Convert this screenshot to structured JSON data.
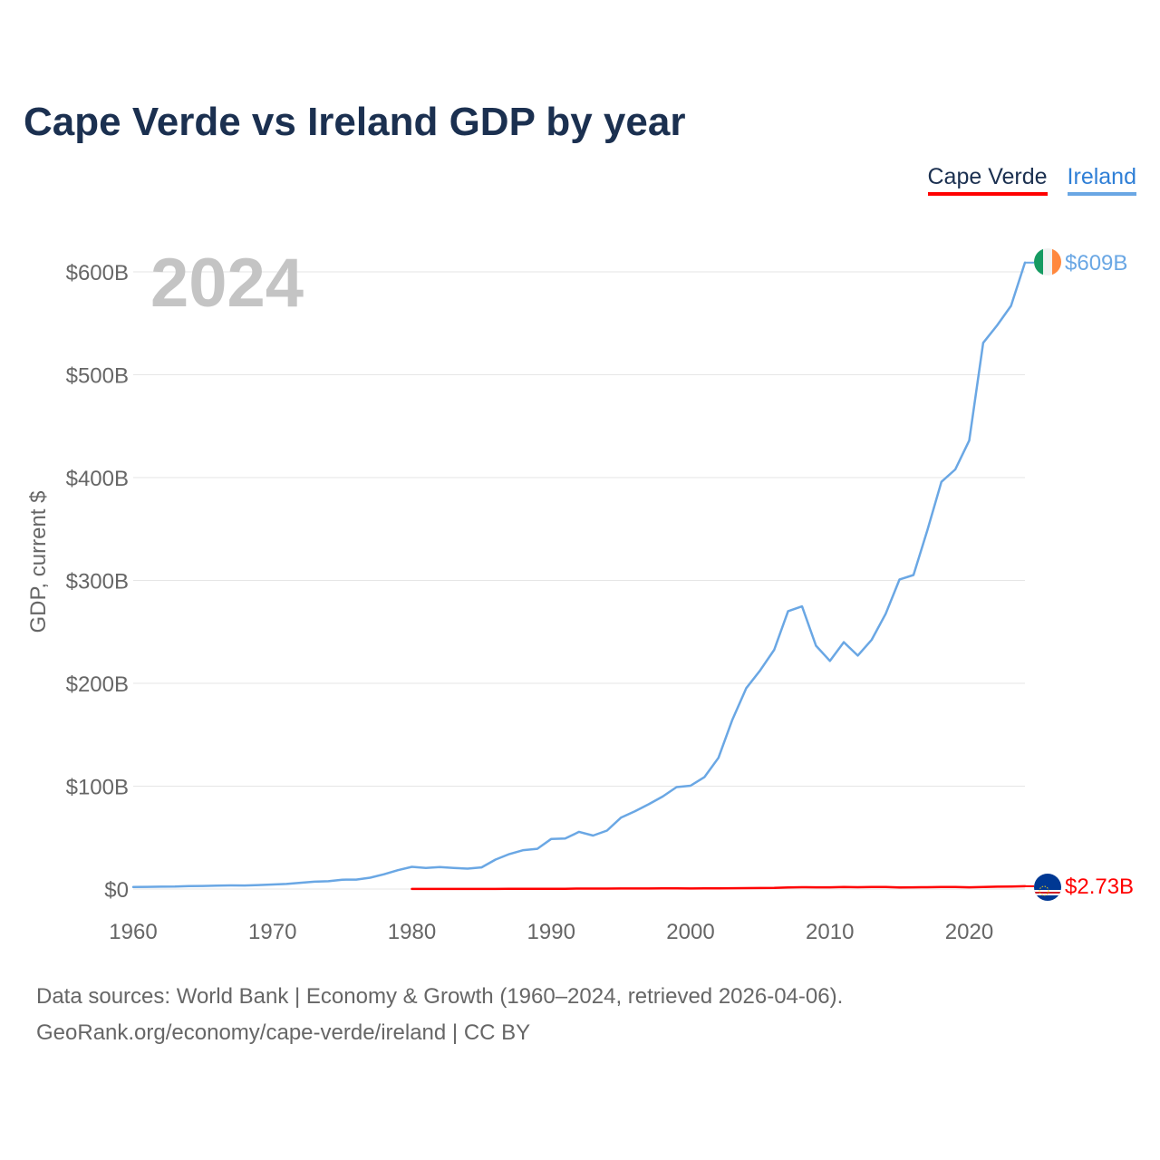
{
  "title": "Cape Verde vs Ireland GDP by year",
  "year_label": "2024",
  "legend": {
    "cape_verde": "Cape Verde",
    "ireland": "Ireland"
  },
  "source": {
    "line1": "Data sources: World Bank | Economy & Growth (1960–2024, retrieved 2026-04-06).",
    "line2": "GeoRank.org/economy/cape-verde/ireland | CC BY"
  },
  "colors": {
    "cape_verde": "#ff0000",
    "ireland": "#6aa7e4",
    "title": "#1b3050",
    "grid": "#e6e6e6",
    "axis_text": "#666666",
    "year_watermark": "#c4c4c4"
  },
  "chart_data": {
    "type": "line",
    "title": "Cape Verde vs Ireland GDP by year",
    "xlabel": "",
    "ylabel": "GDP, current $",
    "xlim": [
      1960,
      2024
    ],
    "ylim": [
      0,
      600
    ],
    "x_ticks": [
      1960,
      1970,
      1980,
      1990,
      2000,
      2010,
      2020
    ],
    "x_tick_labels": [
      "1960",
      "1970",
      "1980",
      "1990",
      "2000",
      "2010",
      "2020"
    ],
    "y_ticks": [
      0,
      100,
      200,
      300,
      400,
      500,
      600
    ],
    "y_tick_labels": [
      "$0",
      "$100B",
      "$200B",
      "$300B",
      "$400B",
      "$500B",
      "$600B"
    ],
    "unit": "billions USD",
    "series": [
      {
        "name": "Cape Verde",
        "color": "#ff0000",
        "end_label": "$2.73B",
        "x": [
          1980,
          1981,
          1982,
          1983,
          1984,
          1985,
          1986,
          1987,
          1988,
          1989,
          1990,
          1991,
          1992,
          1993,
          1994,
          1995,
          1996,
          1997,
          1998,
          1999,
          2000,
          2001,
          2002,
          2003,
          2004,
          2005,
          2006,
          2007,
          2008,
          2009,
          2010,
          2011,
          2012,
          2013,
          2014,
          2015,
          2016,
          2017,
          2018,
          2019,
          2020,
          2021,
          2022,
          2023,
          2024
        ],
        "values": [
          0.1,
          0.1,
          0.1,
          0.1,
          0.1,
          0.1,
          0.1,
          0.2,
          0.2,
          0.2,
          0.3,
          0.3,
          0.4,
          0.4,
          0.4,
          0.5,
          0.5,
          0.5,
          0.6,
          0.6,
          0.5,
          0.6,
          0.6,
          0.8,
          0.9,
          1.0,
          1.1,
          1.5,
          1.8,
          1.7,
          1.7,
          1.9,
          1.8,
          1.9,
          1.9,
          1.6,
          1.7,
          1.8,
          2.0,
          2.0,
          1.7,
          1.9,
          2.3,
          2.5,
          2.73
        ]
      },
      {
        "name": "Ireland",
        "color": "#6aa7e4",
        "end_label": "$609B",
        "x": [
          1960,
          1961,
          1962,
          1963,
          1964,
          1965,
          1966,
          1967,
          1968,
          1969,
          1970,
          1971,
          1972,
          1973,
          1974,
          1975,
          1976,
          1977,
          1978,
          1979,
          1980,
          1981,
          1982,
          1983,
          1984,
          1985,
          1986,
          1987,
          1988,
          1989,
          1990,
          1991,
          1992,
          1993,
          1994,
          1995,
          1996,
          1997,
          1998,
          1999,
          2000,
          2001,
          2002,
          2003,
          2004,
          2005,
          2006,
          2007,
          2008,
          2009,
          2010,
          2011,
          2012,
          2013,
          2014,
          2015,
          2016,
          2017,
          2018,
          2019,
          2020,
          2021,
          2022,
          2023,
          2024
        ],
        "values": [
          1.9,
          2.1,
          2.3,
          2.4,
          2.8,
          3.0,
          3.3,
          3.5,
          3.4,
          3.9,
          4.4,
          4.9,
          6.1,
          7.1,
          7.6,
          9.1,
          9.2,
          11.0,
          14.4,
          18.3,
          21.6,
          20.5,
          21.3,
          20.5,
          19.8,
          21.1,
          28.6,
          34.0,
          37.8,
          39.1,
          48.7,
          49.2,
          55.6,
          52.0,
          56.8,
          69.3,
          75.6,
          82.5,
          90.0,
          99.1,
          100.4,
          108.9,
          127.6,
          164.6,
          195.3,
          212.7,
          232.6,
          270.1,
          274.8,
          236.6,
          221.8,
          240.0,
          227.0,
          242.4,
          267.6,
          301.0,
          305.3,
          349.1,
          395.9,
          407.9,
          436.0,
          531.0,
          548.0,
          567.0,
          609.0
        ]
      }
    ]
  }
}
